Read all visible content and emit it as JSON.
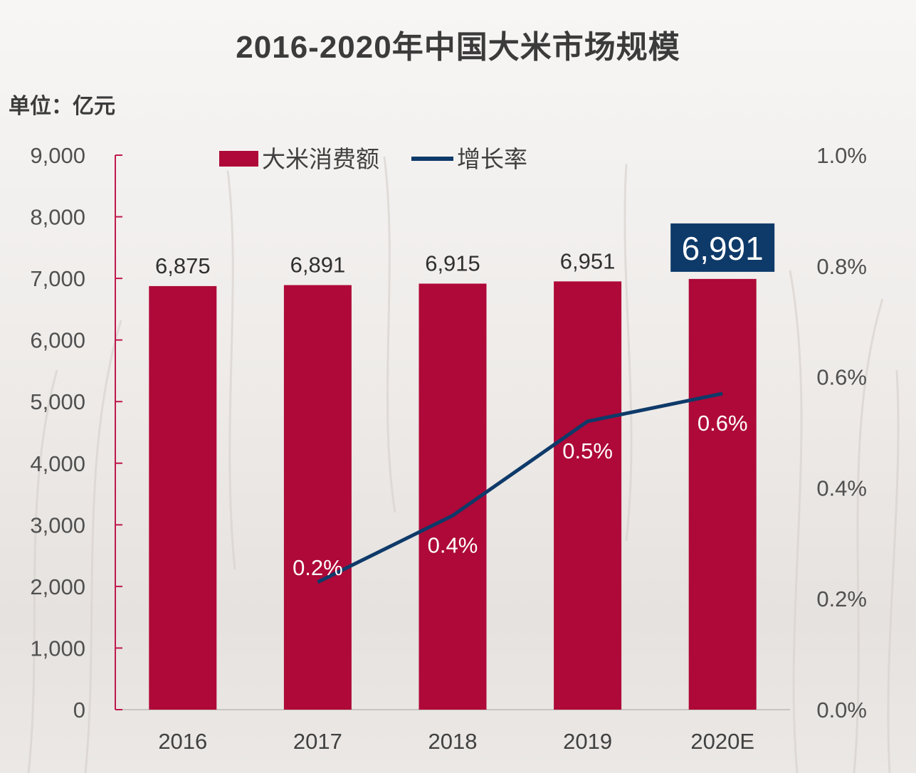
{
  "title": "2016-2020年中国大米市场规模",
  "unit_label": "单位：亿元",
  "colors": {
    "bar": "#ae0938",
    "line": "#0e3a69",
    "highlight_box": "#0e3a69",
    "axis": "#c0184a",
    "text": "#404040"
  },
  "chart_data": {
    "type": "bar",
    "title": "2016-2020年中国大米市场规模",
    "categories": [
      "2016",
      "2017",
      "2018",
      "2019",
      "2020E"
    ],
    "series": [
      {
        "name": "大米消费额",
        "type": "bar",
        "axis": "left",
        "values": [
          6875,
          6891,
          6915,
          6951,
          6991
        ],
        "labels": [
          "6,875",
          "6,891",
          "6,915",
          "6,951",
          "6,991"
        ],
        "highlight_index": 4
      },
      {
        "name": "增长率",
        "type": "line",
        "axis": "right",
        "values": [
          null,
          0.23,
          0.35,
          0.52,
          0.57
        ],
        "labels": [
          "",
          "0.2%",
          "0.4%",
          "0.5%",
          "0.6%"
        ]
      }
    ],
    "y_left": {
      "min": 0,
      "max": 9000,
      "ticks": [
        0,
        1000,
        2000,
        3000,
        4000,
        5000,
        6000,
        7000,
        8000,
        9000
      ],
      "tick_labels": [
        "0",
        "1,000",
        "2,000",
        "3,000",
        "4,000",
        "5,000",
        "6,000",
        "7,000",
        "8,000",
        "9,000"
      ]
    },
    "y_right": {
      "min": 0,
      "max": 1.0,
      "ticks": [
        0,
        0.2,
        0.4,
        0.6,
        0.8,
        1.0
      ],
      "tick_labels": [
        "0.0%",
        "0.2%",
        "0.4%",
        "0.6%",
        "0.8%",
        "1.0%"
      ]
    },
    "legend": "top",
    "grid": false
  }
}
